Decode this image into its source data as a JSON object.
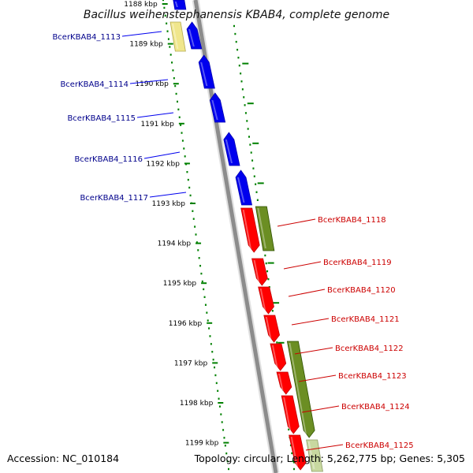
{
  "title": "Bacillus weihenstephanensis KBAB4, complete genome",
  "accession": "Accession: NC_010184",
  "topology": "Topology: circular; Length: 5,262,775 bp; Genes: 5,305",
  "colors": {
    "backbone": "#8c8c8c",
    "left_gene": "#0000ee",
    "right_gene": "#ff0000",
    "right_gene_alt": "#6b8e23",
    "left_gene_alt": "#f0e68c",
    "tick_marks": "#008000",
    "left_label": "#00008b",
    "right_label": "#cc0000"
  },
  "ticks": [
    {
      "label": "1188 kbp"
    },
    {
      "label": "1189 kbp"
    },
    {
      "label": "1190 kbp"
    },
    {
      "label": "1191 kbp"
    },
    {
      "label": "1192 kbp"
    },
    {
      "label": "1193 kbp"
    },
    {
      "label": "1194 kbp"
    },
    {
      "label": "1195 kbp"
    },
    {
      "label": "1196 kbp"
    },
    {
      "label": "1197 kbp"
    },
    {
      "label": "1198 kbp"
    },
    {
      "label": "1199 kbp"
    }
  ],
  "left_genes": [
    {
      "label": "BcerKBAB4_1113"
    },
    {
      "label": "BcerKBAB4_1114"
    },
    {
      "label": "BcerKBAB4_1115"
    },
    {
      "label": "BcerKBAB4_1116"
    },
    {
      "label": "BcerKBAB4_1117"
    }
  ],
  "right_genes": [
    {
      "label": "BcerKBAB4_1118"
    },
    {
      "label": "BcerKBAB4_1119"
    },
    {
      "label": "BcerKBAB4_1120"
    },
    {
      "label": "BcerKBAB4_1121"
    },
    {
      "label": "BcerKBAB4_1122"
    },
    {
      "label": "BcerKBAB4_1123"
    },
    {
      "label": "BcerKBAB4_1124"
    },
    {
      "label": "BcerKBAB4_1125"
    }
  ]
}
